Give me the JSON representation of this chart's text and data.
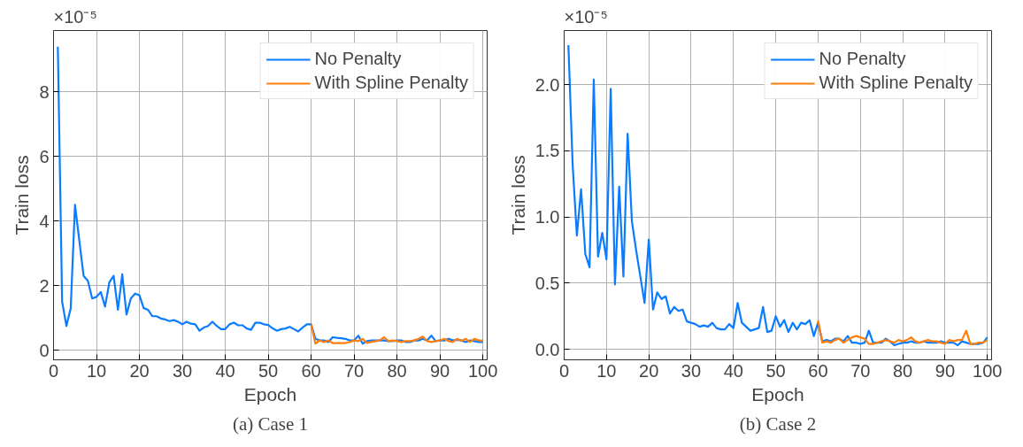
{
  "chart_data": [
    {
      "type": "line",
      "xlabel": "Epoch",
      "ylabel": "Train loss",
      "annotations": [
        "×10⁻⁵",
        "(a) Case 1"
      ],
      "xlim": [
        0,
        101
      ],
      "ylim": [
        -0.3,
        9.9
      ],
      "xticks": [
        0,
        10,
        20,
        30,
        40,
        50,
        60,
        70,
        80,
        90,
        100
      ],
      "yticks": [
        0,
        2,
        4,
        6,
        8
      ],
      "grid": true,
      "legend": "top right",
      "line_style": "solid",
      "series": [
        {
          "name": "No Penalty",
          "color": "#0a7cff",
          "x": [
            1,
            2,
            3,
            4,
            5,
            6,
            7,
            8,
            9,
            10,
            11,
            12,
            13,
            14,
            15,
            16,
            17,
            18,
            19,
            20,
            21,
            22,
            23,
            24,
            25,
            26,
            27,
            28,
            29,
            30,
            31,
            32,
            33,
            34,
            35,
            36,
            37,
            38,
            39,
            40,
            41,
            42,
            43,
            44,
            45,
            46,
            47,
            48,
            49,
            50,
            51,
            52,
            53,
            54,
            55,
            56,
            57,
            58,
            59,
            60,
            61,
            62,
            63,
            64,
            65,
            66,
            67,
            68,
            69,
            70,
            71,
            72,
            73,
            74,
            75,
            76,
            77,
            78,
            79,
            80,
            81,
            82,
            83,
            84,
            85,
            86,
            87,
            88,
            89,
            90,
            91,
            92,
            93,
            94,
            95,
            96,
            97,
            98,
            99,
            100
          ],
          "values": [
            9.4,
            1.5,
            0.75,
            1.3,
            4.5,
            3.4,
            2.3,
            2.15,
            1.6,
            1.65,
            1.8,
            1.35,
            2.1,
            2.3,
            1.25,
            2.35,
            1.1,
            1.6,
            1.75,
            1.7,
            1.3,
            1.25,
            1.05,
            1.05,
            0.98,
            0.95,
            0.9,
            0.93,
            0.88,
            0.8,
            0.88,
            0.82,
            0.8,
            0.6,
            0.7,
            0.75,
            0.88,
            0.75,
            0.65,
            0.65,
            0.8,
            0.85,
            0.77,
            0.77,
            0.67,
            0.63,
            0.85,
            0.85,
            0.8,
            0.78,
            0.68,
            0.6,
            0.65,
            0.67,
            0.72,
            0.65,
            0.58,
            0.7,
            0.8,
            0.8,
            0.35,
            0.3,
            0.3,
            0.25,
            0.4,
            0.38,
            0.37,
            0.35,
            0.3,
            0.3,
            0.45,
            0.2,
            0.28,
            0.3,
            0.3,
            0.3,
            0.3,
            0.28,
            0.28,
            0.3,
            0.3,
            0.25,
            0.25,
            0.3,
            0.3,
            0.35,
            0.3,
            0.45,
            0.28,
            0.3,
            0.3,
            0.35,
            0.3,
            0.32,
            0.3,
            0.25,
            0.3,
            0.28,
            0.25,
            0.25
          ]
        },
        {
          "name": "With Spline Penalty",
          "color": "#ff7f0e",
          "x": [
            60,
            61,
            62,
            63,
            64,
            65,
            66,
            67,
            68,
            69,
            70,
            71,
            72,
            73,
            74,
            75,
            76,
            77,
            78,
            79,
            80,
            81,
            82,
            83,
            84,
            85,
            86,
            87,
            88,
            89,
            90,
            91,
            92,
            93,
            94,
            95,
            96,
            97,
            98,
            99,
            100
          ],
          "values": [
            0.8,
            0.2,
            0.3,
            0.25,
            0.3,
            0.22,
            0.22,
            0.22,
            0.22,
            0.25,
            0.3,
            0.28,
            0.35,
            0.22,
            0.25,
            0.28,
            0.3,
            0.4,
            0.28,
            0.3,
            0.28,
            0.25,
            0.28,
            0.28,
            0.3,
            0.35,
            0.42,
            0.28,
            0.25,
            0.28,
            0.3,
            0.35,
            0.28,
            0.25,
            0.35,
            0.28,
            0.35,
            0.25,
            0.35,
            0.3,
            0.3
          ]
        }
      ]
    },
    {
      "type": "line",
      "xlabel": "Epoch",
      "ylabel": "Train loss",
      "annotations": [
        "×10⁻⁵",
        "(b) Case 2"
      ],
      "xlim": [
        0,
        101
      ],
      "ylim": [
        -0.08,
        2.41
      ],
      "xticks": [
        0,
        10,
        20,
        30,
        40,
        50,
        60,
        70,
        80,
        90,
        100
      ],
      "yticks": [
        {
          "value": 0,
          "label": "0.0"
        },
        0.5,
        {
          "value": 1,
          "label": "1.0"
        },
        1.5,
        {
          "value": 2,
          "label": "2.0"
        }
      ],
      "grid": true,
      "legend": "top right",
      "line_style": "solid",
      "series": [
        {
          "name": "No Penalty",
          "color": "#0a7cff",
          "x": [
            1,
            2,
            3,
            4,
            5,
            6,
            7,
            8,
            9,
            10,
            11,
            12,
            13,
            14,
            15,
            16,
            17,
            18,
            19,
            20,
            21,
            22,
            23,
            24,
            25,
            26,
            27,
            28,
            29,
            30,
            31,
            32,
            33,
            34,
            35,
            36,
            37,
            38,
            39,
            40,
            41,
            42,
            43,
            44,
            45,
            46,
            47,
            48,
            49,
            50,
            51,
            52,
            53,
            54,
            55,
            56,
            57,
            58,
            59,
            60,
            61,
            62,
            63,
            64,
            65,
            66,
            67,
            68,
            69,
            70,
            71,
            72,
            73,
            74,
            75,
            76,
            77,
            78,
            79,
            80,
            81,
            82,
            83,
            84,
            85,
            86,
            87,
            88,
            89,
            90,
            91,
            92,
            93,
            94,
            95,
            96,
            97,
            98,
            99,
            100
          ],
          "values": [
            2.3,
            1.4,
            0.86,
            1.21,
            0.72,
            0.62,
            2.04,
            0.7,
            0.88,
            0.68,
            1.97,
            0.49,
            1.23,
            0.55,
            1.63,
            0.97,
            0.75,
            0.55,
            0.35,
            0.83,
            0.3,
            0.43,
            0.38,
            0.4,
            0.27,
            0.32,
            0.29,
            0.3,
            0.21,
            0.2,
            0.19,
            0.17,
            0.18,
            0.17,
            0.2,
            0.16,
            0.15,
            0.15,
            0.19,
            0.16,
            0.35,
            0.2,
            0.17,
            0.14,
            0.15,
            0.16,
            0.32,
            0.13,
            0.14,
            0.25,
            0.17,
            0.22,
            0.13,
            0.2,
            0.15,
            0.2,
            0.19,
            0.22,
            0.1,
            0.2,
            0.06,
            0.07,
            0.06,
            0.08,
            0.08,
            0.06,
            0.1,
            0.05,
            0.05,
            0.04,
            0.05,
            0.14,
            0.05,
            0.05,
            0.05,
            0.08,
            0.06,
            0.03,
            0.04,
            0.05,
            0.05,
            0.06,
            0.05,
            0.05,
            0.06,
            0.05,
            0.05,
            0.05,
            0.06,
            0.05,
            0.05,
            0.05,
            0.03,
            0.06,
            0.05,
            0.04,
            0.04,
            0.04,
            0.05,
            0.09
          ]
        },
        {
          "name": "With Spline Penalty",
          "color": "#ff7f0e",
          "x": [
            60,
            61,
            62,
            63,
            64,
            65,
            66,
            67,
            68,
            69,
            70,
            71,
            72,
            73,
            74,
            75,
            76,
            77,
            78,
            79,
            80,
            81,
            82,
            83,
            84,
            85,
            86,
            87,
            88,
            89,
            90,
            91,
            92,
            93,
            94,
            95,
            96,
            97,
            98,
            99,
            100
          ],
          "values": [
            0.22,
            0.05,
            0.06,
            0.05,
            0.07,
            0.08,
            0.05,
            0.07,
            0.09,
            0.1,
            0.09,
            0.08,
            0.04,
            0.04,
            0.05,
            0.06,
            0.07,
            0.06,
            0.05,
            0.07,
            0.06,
            0.07,
            0.09,
            0.06,
            0.05,
            0.06,
            0.07,
            0.06,
            0.06,
            0.05,
            0.04,
            0.07,
            0.06,
            0.07,
            0.07,
            0.14,
            0.04,
            0.04,
            0.05,
            0.05,
            0.07
          ]
        }
      ]
    }
  ]
}
